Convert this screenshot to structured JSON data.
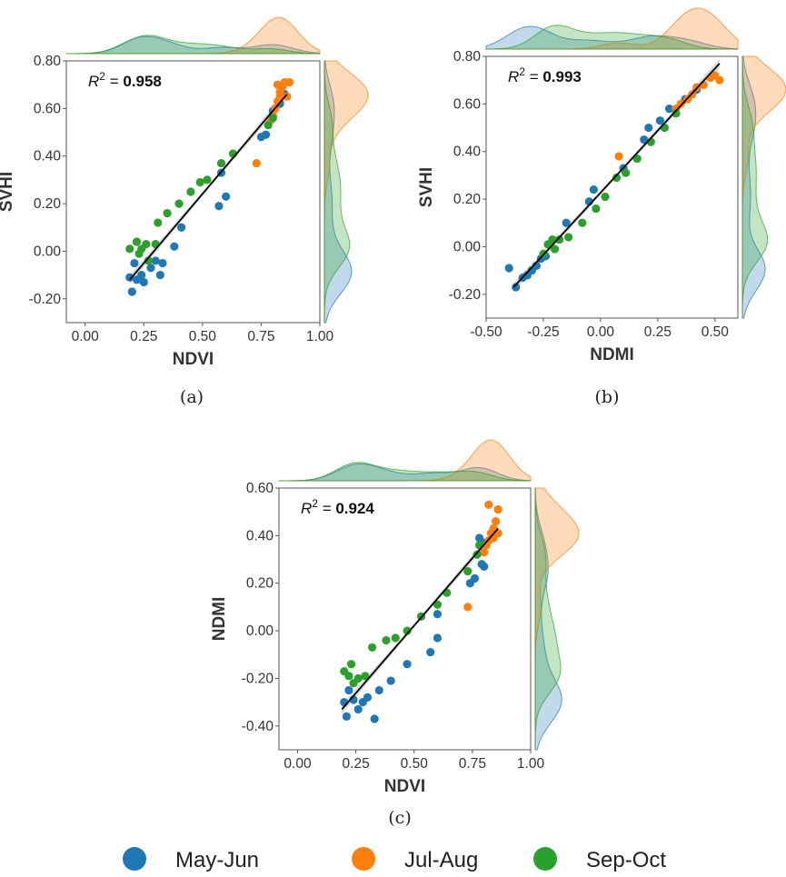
{
  "colors": {
    "may_jun": "#1f77b4",
    "jul_aug": "#ff7f0e",
    "sep_oct": "#2ca02c",
    "fit": "#000000",
    "band": "#bdbdbd"
  },
  "legend": [
    {
      "label": "May-Jun",
      "color": "#1f77b4"
    },
    {
      "label": "Jul-Aug",
      "color": "#ff7f0e"
    },
    {
      "label": "Sep-Oct",
      "color": "#2ca02c"
    }
  ],
  "chart_data": [
    {
      "id": "a",
      "type": "scatter",
      "caption": "(a)",
      "xlabel": "NDVI",
      "ylabel": "SVHI",
      "r2_value": "0.958",
      "xlim": [
        -0.08,
        1.0
      ],
      "ylim": [
        -0.3,
        0.8
      ],
      "xticks": [
        "0.00",
        "0.25",
        "0.50",
        "0.75",
        "1.00"
      ],
      "yticks": [
        "-0.20",
        "0.00",
        "0.20",
        "0.40",
        "0.60",
        "0.80"
      ],
      "fit": {
        "x": [
          0.19,
          0.86
        ],
        "y": [
          -0.12,
          0.66
        ]
      },
      "series": [
        {
          "name": "May-Jun",
          "color": "#1f77b4",
          "points": [
            [
              0.2,
              -0.17
            ],
            [
              0.19,
              -0.11
            ],
            [
              0.21,
              -0.05
            ],
            [
              0.22,
              -0.12
            ],
            [
              0.24,
              -0.1
            ],
            [
              0.25,
              -0.13
            ],
            [
              0.28,
              -0.07
            ],
            [
              0.3,
              -0.04
            ],
            [
              0.32,
              -0.1
            ],
            [
              0.33,
              -0.05
            ],
            [
              0.38,
              0.02
            ],
            [
              0.41,
              0.1
            ],
            [
              0.57,
              0.19
            ],
            [
              0.6,
              0.23
            ],
            [
              0.58,
              0.33
            ],
            [
              0.75,
              0.48
            ],
            [
              0.77,
              0.49
            ],
            [
              0.8,
              0.59
            ],
            [
              0.83,
              0.62
            ],
            [
              0.85,
              0.66
            ]
          ]
        },
        {
          "name": "Jul-Aug",
          "color": "#ff7f0e",
          "points": [
            [
              0.73,
              0.37
            ],
            [
              0.79,
              0.55
            ],
            [
              0.8,
              0.57
            ],
            [
              0.81,
              0.6
            ],
            [
              0.82,
              0.63
            ],
            [
              0.83,
              0.65
            ],
            [
              0.83,
              0.67
            ],
            [
              0.84,
              0.69
            ],
            [
              0.85,
              0.71
            ],
            [
              0.87,
              0.71
            ],
            [
              0.82,
              0.7
            ],
            [
              0.86,
              0.65
            ]
          ]
        },
        {
          "name": "Sep-Oct",
          "color": "#2ca02c",
          "points": [
            [
              0.19,
              0.01
            ],
            [
              0.22,
              0.04
            ],
            [
              0.23,
              -0.01
            ],
            [
              0.24,
              0.01
            ],
            [
              0.26,
              0.03
            ],
            [
              0.27,
              -0.04
            ],
            [
              0.3,
              0.03
            ],
            [
              0.31,
              0.12
            ],
            [
              0.35,
              0.16
            ],
            [
              0.4,
              0.2
            ],
            [
              0.45,
              0.25
            ],
            [
              0.49,
              0.29
            ],
            [
              0.52,
              0.3
            ],
            [
              0.58,
              0.37
            ],
            [
              0.63,
              0.41
            ],
            [
              0.78,
              0.53
            ],
            [
              0.8,
              0.56
            ]
          ]
        }
      ]
    },
    {
      "id": "b",
      "type": "scatter",
      "caption": "(b)",
      "xlabel": "NDMI",
      "ylabel": "SVHI",
      "r2_value": "0.993",
      "xlim": [
        -0.5,
        0.6
      ],
      "ylim": [
        -0.3,
        0.8
      ],
      "xticks": [
        "-0.50",
        "-0.25",
        "0.00",
        "0.25",
        "0.50"
      ],
      "yticks": [
        "-0.20",
        "0.00",
        "0.20",
        "0.40",
        "0.60",
        "0.80"
      ],
      "fit": {
        "x": [
          -0.38,
          0.52
        ],
        "y": [
          -0.17,
          0.77
        ]
      },
      "series": [
        {
          "name": "May-Jun",
          "color": "#1f77b4",
          "points": [
            [
              -0.4,
              -0.09
            ],
            [
              -0.37,
              -0.17
            ],
            [
              -0.34,
              -0.13
            ],
            [
              -0.32,
              -0.12
            ],
            [
              -0.3,
              -0.1
            ],
            [
              -0.28,
              -0.08
            ],
            [
              -0.26,
              -0.05
            ],
            [
              -0.24,
              -0.04
            ],
            [
              -0.15,
              0.1
            ],
            [
              -0.05,
              0.19
            ],
            [
              -0.03,
              0.24
            ],
            [
              0.1,
              0.33
            ],
            [
              0.19,
              0.45
            ],
            [
              0.21,
              0.5
            ],
            [
              0.26,
              0.53
            ],
            [
              0.3,
              0.58
            ],
            [
              0.37,
              0.62
            ],
            [
              0.42,
              0.66
            ]
          ]
        },
        {
          "name": "Jul-Aug",
          "color": "#ff7f0e",
          "points": [
            [
              0.08,
              0.38
            ],
            [
              0.33,
              0.58
            ],
            [
              0.35,
              0.6
            ],
            [
              0.38,
              0.62
            ],
            [
              0.4,
              0.64
            ],
            [
              0.42,
              0.67
            ],
            [
              0.45,
              0.68
            ],
            [
              0.48,
              0.71
            ],
            [
              0.5,
              0.72
            ],
            [
              0.52,
              0.7
            ]
          ]
        },
        {
          "name": "Sep-Oct",
          "color": "#2ca02c",
          "points": [
            [
              -0.25,
              -0.03
            ],
            [
              -0.23,
              0.01
            ],
            [
              -0.21,
              0.03
            ],
            [
              -0.2,
              -0.01
            ],
            [
              -0.18,
              0.03
            ],
            [
              -0.14,
              0.04
            ],
            [
              -0.08,
              0.1
            ],
            [
              -0.02,
              0.16
            ],
            [
              0.02,
              0.21
            ],
            [
              0.07,
              0.29
            ],
            [
              0.11,
              0.31
            ],
            [
              0.16,
              0.37
            ],
            [
              0.22,
              0.44
            ],
            [
              0.28,
              0.5
            ],
            [
              0.33,
              0.56
            ]
          ]
        }
      ]
    },
    {
      "id": "c",
      "type": "scatter",
      "caption": "(c)",
      "xlabel": "NDVI",
      "ylabel": "NDMI",
      "r2_value": "0.924",
      "xlim": [
        -0.08,
        1.0
      ],
      "ylim": [
        -0.5,
        0.6
      ],
      "xticks": [
        "0.00",
        "0.25",
        "0.50",
        "0.75",
        "1.00"
      ],
      "yticks": [
        "-0.40",
        "-0.20",
        "0.00",
        "0.20",
        "0.40",
        "0.60"
      ],
      "fit": {
        "x": [
          0.19,
          0.86
        ],
        "y": [
          -0.33,
          0.43
        ]
      },
      "series": [
        {
          "name": "May-Jun",
          "color": "#1f77b4",
          "points": [
            [
              0.2,
              -0.3
            ],
            [
              0.21,
              -0.36
            ],
            [
              0.22,
              -0.25
            ],
            [
              0.24,
              -0.29
            ],
            [
              0.26,
              -0.33
            ],
            [
              0.28,
              -0.3
            ],
            [
              0.3,
              -0.28
            ],
            [
              0.33,
              -0.37
            ],
            [
              0.35,
              -0.25
            ],
            [
              0.4,
              -0.21
            ],
            [
              0.47,
              -0.14
            ],
            [
              0.57,
              -0.09
            ],
            [
              0.6,
              -0.03
            ],
            [
              0.6,
              0.07
            ],
            [
              0.74,
              0.2
            ],
            [
              0.76,
              0.22
            ],
            [
              0.79,
              0.28
            ],
            [
              0.8,
              0.37
            ],
            [
              0.78,
              0.39
            ],
            [
              0.8,
              0.27
            ]
          ]
        },
        {
          "name": "Jul-Aug",
          "color": "#ff7f0e",
          "points": [
            [
              0.73,
              0.1
            ],
            [
              0.8,
              0.33
            ],
            [
              0.81,
              0.36
            ],
            [
              0.82,
              0.38
            ],
            [
              0.83,
              0.41
            ],
            [
              0.84,
              0.43
            ],
            [
              0.85,
              0.46
            ],
            [
              0.82,
              0.53
            ],
            [
              0.86,
              0.51
            ],
            [
              0.84,
              0.39
            ],
            [
              0.86,
              0.41
            ]
          ]
        },
        {
          "name": "Sep-Oct",
          "color": "#2ca02c",
          "points": [
            [
              0.2,
              -0.17
            ],
            [
              0.22,
              -0.19
            ],
            [
              0.23,
              -0.14
            ],
            [
              0.24,
              -0.22
            ],
            [
              0.26,
              -0.2
            ],
            [
              0.29,
              -0.19
            ],
            [
              0.32,
              -0.07
            ],
            [
              0.38,
              -0.04
            ],
            [
              0.42,
              -0.03
            ],
            [
              0.47,
              0.0
            ],
            [
              0.53,
              0.06
            ],
            [
              0.6,
              0.11
            ],
            [
              0.64,
              0.16
            ],
            [
              0.73,
              0.25
            ],
            [
              0.77,
              0.32
            ],
            [
              0.78,
              0.36
            ]
          ]
        }
      ]
    }
  ]
}
